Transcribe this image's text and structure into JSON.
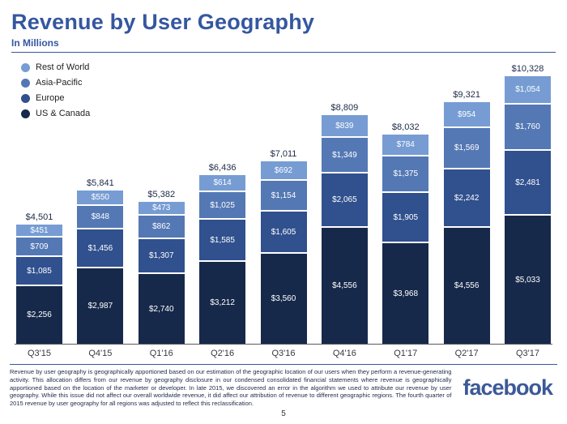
{
  "title": "Revenue by User Geography",
  "subtitle": "In Millions",
  "legend": [
    {
      "label": "Rest of World",
      "color": "#769cd3"
    },
    {
      "label": "Asia-Pacific",
      "color": "#5478b4"
    },
    {
      "label": "Europe",
      "color": "#30508e"
    },
    {
      "label": "US & Canada",
      "color": "#17294a"
    }
  ],
  "chart_data": {
    "type": "bar",
    "stacked": true,
    "title": "Revenue by User Geography",
    "units": "In Millions (USD)",
    "categories": [
      "Q3'15",
      "Q4'15",
      "Q1'16",
      "Q2'16",
      "Q3'16",
      "Q4'16",
      "Q1'17",
      "Q2'17",
      "Q3'17"
    ],
    "series": [
      {
        "name": "US & Canada",
        "color": "#17294a",
        "values": [
          2256,
          2987,
          2740,
          3212,
          3560,
          4556,
          3968,
          4556,
          5033
        ]
      },
      {
        "name": "Europe",
        "color": "#30508e",
        "values": [
          1085,
          1456,
          1307,
          1585,
          1605,
          2065,
          1905,
          2242,
          2481
        ]
      },
      {
        "name": "Asia-Pacific",
        "color": "#5478b4",
        "values": [
          709,
          848,
          862,
          1025,
          1154,
          1349,
          1375,
          1569,
          1760
        ]
      },
      {
        "name": "Rest of World",
        "color": "#769cd3",
        "values": [
          451,
          550,
          473,
          614,
          692,
          839,
          784,
          954,
          1054
        ]
      }
    ],
    "totals": [
      4501,
      5841,
      5382,
      6436,
      7011,
      8809,
      8032,
      9321,
      10328
    ],
    "total_labels": [
      "$4,501",
      "$5,841",
      "$5,382",
      "$6,436",
      "$7,011",
      "$8,809",
      "$8,032",
      "$9,321",
      "$10,328"
    ],
    "ylim": [
      0,
      10328
    ],
    "grid": false,
    "legend_position": "top-left"
  },
  "footer": {
    "disclaimer": "Revenue by user geography is geographically apportioned based on our estimation of the geographic location of our users when they perform a revenue-generating activity. This allocation differs from our revenue by geography disclosure in our condensed consolidated financial statements where revenue is geographically apportioned based on the location of the marketer or developer. In late 2015, we discovered an error in the algorithm we used to attribute our revenue by user geography. While this issue did not affect our overall worldwide revenue, it did affect our attribution of revenue to different geographic regions. The fourth quarter of 2015 revenue by user geography for all regions was adjusted to reflect this reclassification.",
    "logo": "facebook",
    "page_number": "5"
  }
}
